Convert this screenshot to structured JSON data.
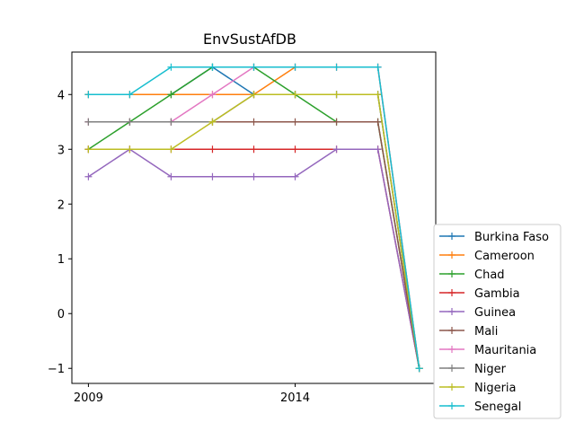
{
  "chart_data": {
    "type": "line",
    "title": "EnvSustAfDB",
    "xlabel": "",
    "ylabel": "",
    "x": [
      2009,
      2010,
      2011,
      2012,
      2013,
      2014,
      2015,
      2016,
      2017
    ],
    "xticks": [
      2009,
      2014
    ],
    "xtick_labels": [
      "2009",
      "2014"
    ],
    "yticks": [
      -1,
      0,
      1,
      2,
      3,
      4
    ],
    "ytick_labels": [
      "−1",
      "0",
      "1",
      "2",
      "3",
      "4"
    ],
    "xlim": [
      2008.6,
      2017.4
    ],
    "ylim": [
      -1.275,
      4.775
    ],
    "grid": false,
    "legend_position": "outside-right-bottom",
    "marker": "plus",
    "series": [
      {
        "name": "Burkina Faso",
        "color": "#1f77b4",
        "values": [
          4,
          4,
          4,
          4.5,
          4,
          4,
          4,
          4,
          -1
        ]
      },
      {
        "name": "Cameroon",
        "color": "#ff7f0e",
        "values": [
          4,
          4,
          4,
          4,
          4,
          4.5,
          4.5,
          4.5,
          -1
        ]
      },
      {
        "name": "Chad",
        "color": "#2ca02c",
        "values": [
          3,
          3.5,
          4,
          4.5,
          4.5,
          4,
          3.5,
          3.5,
          -1
        ]
      },
      {
        "name": "Gambia",
        "color": "#d62728",
        "values": [
          3,
          3,
          3,
          3,
          3,
          3,
          3,
          3,
          -1
        ]
      },
      {
        "name": "Guinea",
        "color": "#9467bd",
        "values": [
          2.5,
          3,
          2.5,
          2.5,
          2.5,
          2.5,
          3,
          3,
          -1
        ]
      },
      {
        "name": "Mali",
        "color": "#8c564b",
        "values": [
          3.5,
          3.5,
          3.5,
          3.5,
          3.5,
          3.5,
          3.5,
          3.5,
          -1
        ]
      },
      {
        "name": "Mauritania",
        "color": "#e377c2",
        "values": [
          3.5,
          3.5,
          3.5,
          4,
          4.5,
          4.5,
          4.5,
          4.5,
          -1
        ]
      },
      {
        "name": "Niger",
        "color": "#7f7f7f",
        "values": [
          3.5,
          3.5,
          3.5,
          3.5,
          4,
          4,
          4,
          4,
          -1
        ]
      },
      {
        "name": "Nigeria",
        "color": "#bcbd22",
        "values": [
          3,
          3,
          3,
          3.5,
          4,
          4,
          4,
          4,
          -1
        ]
      },
      {
        "name": "Senegal",
        "color": "#17becf",
        "values": [
          4,
          4,
          4.5,
          4.5,
          4.5,
          4.5,
          4.5,
          4.5,
          -1
        ]
      }
    ]
  }
}
